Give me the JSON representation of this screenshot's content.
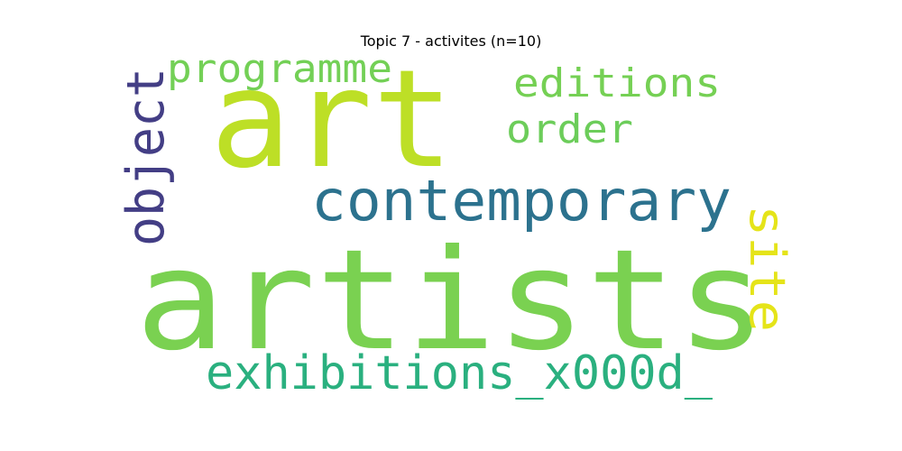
{
  "chart_data": {
    "type": "wordcloud",
    "title": "Topic 7 - activites (n=10)",
    "words": [
      {
        "text": "artists",
        "rank": 1,
        "color": "#7AD151",
        "orientation": "horizontal"
      },
      {
        "text": "art",
        "rank": 2,
        "color": "#BDDF26",
        "orientation": "horizontal"
      },
      {
        "text": "contemporary",
        "rank": 3,
        "color": "#2C728E",
        "orientation": "horizontal"
      },
      {
        "text": "exhibitions_x000d_",
        "rank": 4,
        "color": "#2AB07F",
        "orientation": "horizontal"
      },
      {
        "text": "object",
        "rank": 5,
        "color": "#433E85",
        "orientation": "vertical"
      },
      {
        "text": "programme",
        "rank": 6,
        "color": "#73D056",
        "orientation": "horizontal"
      },
      {
        "text": "editions",
        "rank": 7,
        "color": "#75D054",
        "orientation": "horizontal"
      },
      {
        "text": "site",
        "rank": 8,
        "color": "#E5E419",
        "orientation": "vertical"
      },
      {
        "text": "order",
        "rank": 9,
        "color": "#6CCD5A",
        "orientation": "horizontal"
      }
    ]
  }
}
